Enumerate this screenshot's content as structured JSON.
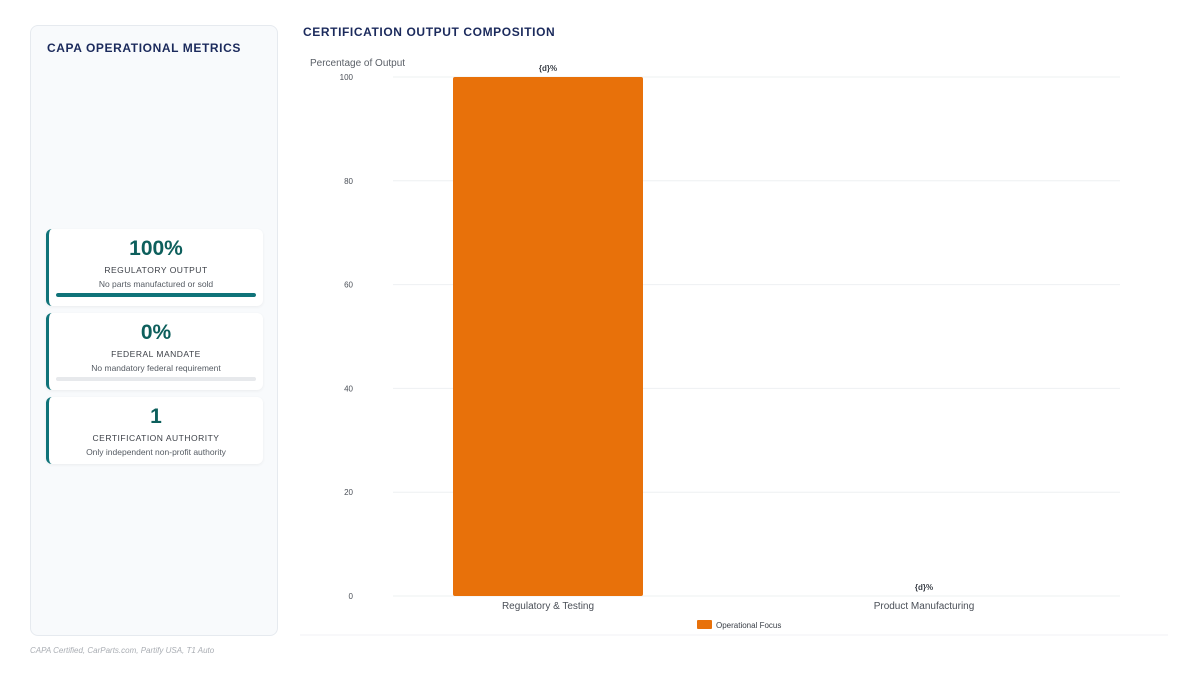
{
  "metrics_panel": {
    "title": "CAPA OPERATIONAL METRICS",
    "cards": [
      {
        "value": "100%",
        "label": "REGULATORY OUTPUT",
        "sub": "No parts manufactured or sold",
        "progress": 1.0
      },
      {
        "value": "0%",
        "label": "FEDERAL MANDATE",
        "sub": "No mandatory federal requirement",
        "progress": 0.0
      },
      {
        "value": "1",
        "label": "CERTIFICATION AUTHORITY",
        "sub": "Only independent non-profit authority"
      }
    ]
  },
  "chart_title": "CERTIFICATION OUTPUT COMPOSITION",
  "chart_data": {
    "type": "bar",
    "title": "CERTIFICATION OUTPUT COMPOSITION",
    "ylabel": "Percentage of Output",
    "xlabel": "",
    "categories": [
      "Regulatory & Testing",
      "Product Manufacturing"
    ],
    "series": [
      {
        "name": "Operational Focus",
        "values": [
          100,
          0
        ],
        "color": "#e8710a"
      }
    ],
    "data_labels": [
      "{d}%",
      "{d}%"
    ],
    "ylim": [
      0,
      100
    ],
    "yticks": [
      0,
      20,
      40,
      60,
      80,
      100
    ],
    "grid": true,
    "legend": "bottom-center"
  },
  "footnote": "CAPA Certified, CarParts.com, Partify USA, T1 Auto",
  "colors": {
    "accent": "#0f7379",
    "bar": "#e8710a",
    "title": "#1b2a5c"
  }
}
